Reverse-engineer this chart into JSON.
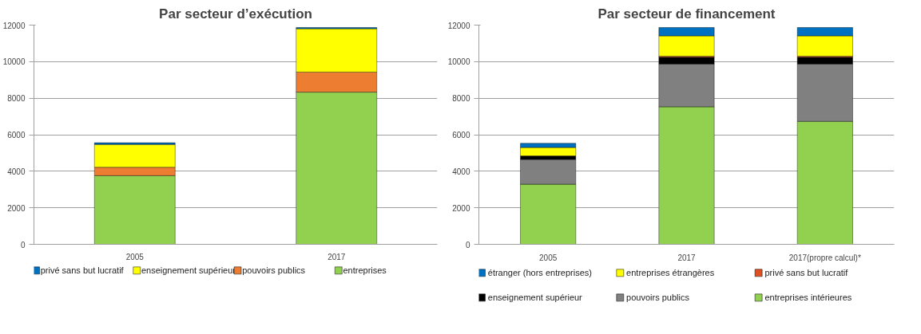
{
  "chart_data": [
    {
      "type": "bar",
      "title": "Par secteur d’exécution",
      "categories": [
        "2005",
        "2017"
      ],
      "stacked": true,
      "series": [
        {
          "name": "entreprises",
          "color": "#92d050",
          "values": [
            3760,
            8330
          ]
        },
        {
          "name": "pouvoirs publics",
          "color": "#ed7d31",
          "values": [
            460,
            1100
          ]
        },
        {
          "name": "enseignement supérieur",
          "color": "#ffff00",
          "values": [
            1250,
            2370
          ]
        },
        {
          "name": "privé sans but lucratif",
          "color": "#0070c0",
          "values": [
            90,
            70
          ]
        }
      ],
      "ylim": [
        0,
        12000
      ],
      "yticks": [
        0,
        2000,
        4000,
        6000,
        8000,
        10000,
        12000
      ],
      "grid": "y",
      "legend": "bottom"
    },
    {
      "type": "bar",
      "title": "Par secteur de financement",
      "categories": [
        "2005",
        "2017",
        "2017(propre calcul)*"
      ],
      "stacked": true,
      "series": [
        {
          "name": "entreprises intérieures",
          "color": "#92d050",
          "values": [
            3290,
            7530,
            6730
          ]
        },
        {
          "name": "pouvoirs publics",
          "color": "#808080",
          "values": [
            1360,
            2340,
            3140
          ]
        },
        {
          "name": "enseignement supérieur",
          "color": "#000000",
          "values": [
            190,
            370,
            370
          ]
        },
        {
          "name": "privé sans but lucratif",
          "color": "#e05020",
          "values": [
            null,
            60,
            60
          ]
        },
        {
          "name": "entreprises étrangères",
          "color": "#ffff00",
          "values": [
            460,
            1110,
            1110
          ]
        },
        {
          "name": "étranger (hors entreprises)",
          "color": "#0070c0",
          "values": [
            230,
            460,
            460
          ]
        }
      ],
      "ylim": [
        0,
        12000
      ],
      "yticks": [
        0,
        2000,
        4000,
        6000,
        8000,
        10000,
        12000
      ],
      "grid": "y",
      "legend": "bottom"
    }
  ]
}
